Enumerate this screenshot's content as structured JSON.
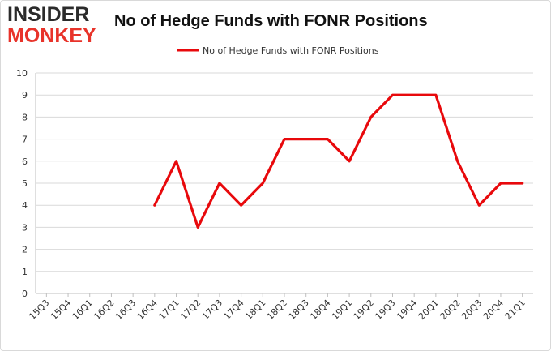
{
  "logo": {
    "line1": "INSIDER",
    "line2": "MONKEY"
  },
  "colors": {
    "series": "#e8090c",
    "grid": "#d9d9d9",
    "logo_dark": "#2b2b2b",
    "logo_red": "#e8332a"
  },
  "chart_data": {
    "type": "line",
    "title": "No of Hedge Funds with FONR Positions",
    "xlabel": "",
    "ylabel": "",
    "ylim": [
      0,
      10
    ],
    "yticks": [
      0,
      1,
      2,
      3,
      4,
      5,
      6,
      7,
      8,
      9,
      10
    ],
    "grid": true,
    "legend_position": "top-center",
    "categories": [
      "15Q3",
      "15Q4",
      "16Q1",
      "16Q2",
      "16Q3",
      "16Q4",
      "17Q1",
      "17Q2",
      "17Q3",
      "17Q4",
      "18Q1",
      "18Q2",
      "18Q3",
      "18Q4",
      "19Q1",
      "19Q2",
      "19Q3",
      "19Q4",
      "20Q1",
      "20Q2",
      "20Q3",
      "20Q4",
      "21Q1"
    ],
    "series": [
      {
        "name": "No of Hedge Funds with FONR Positions",
        "values": [
          null,
          null,
          null,
          null,
          null,
          4,
          6,
          3,
          5,
          4,
          5,
          7,
          7,
          7,
          6,
          8,
          9,
          9,
          9,
          6,
          4,
          5,
          5
        ]
      }
    ]
  }
}
